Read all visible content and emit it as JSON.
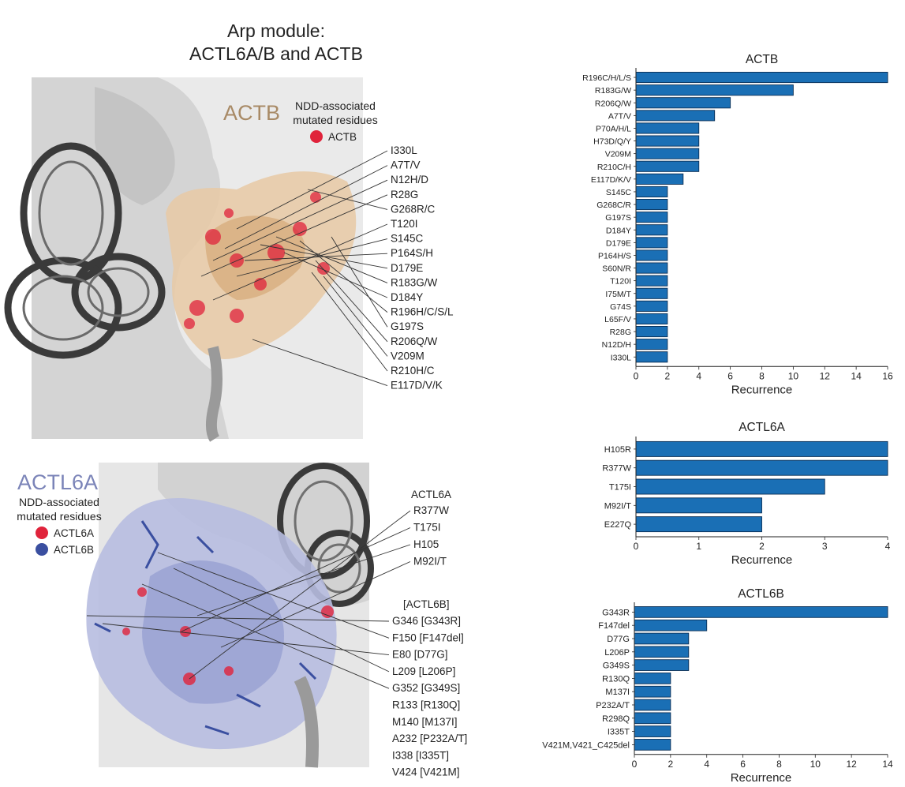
{
  "panel_title_line1": "Arp module:",
  "panel_title_line2": "ACTL6A/B and ACTB",
  "actb_panel": {
    "protein_label": "ACTB",
    "legend_title_line1": "NDD-associated",
    "legend_title_line2": "mutated residues",
    "legend_item": "ACTB",
    "residues": [
      "I330L",
      "A7T/V",
      "N12H/D",
      "R28G",
      "G268R/C",
      "T120I",
      "S145C",
      "P164S/H",
      "D179E",
      "R183G/W",
      "D184Y",
      "R196H/C/S/L",
      "G197S",
      "R206Q/W",
      "V209M",
      "R210H/C",
      "E117D/V/K"
    ]
  },
  "actl6_panel": {
    "protein_label": "ACTL6A",
    "legend_title_line1": "NDD-associated",
    "legend_title_line2": "mutated residues",
    "legend_items": [
      "ACTL6A",
      "ACTL6B"
    ],
    "group_a_header": "ACTL6A",
    "group_a": [
      "R377W",
      "T175I",
      "H105",
      "M92I/T"
    ],
    "group_b_header": "[ACTL6B]",
    "group_b": [
      "G346 [G343R]",
      "F150 [F147del]",
      "E80 [D77G]",
      "L209 [L206P]",
      "G352 [G349S]",
      "R133 [R130Q]",
      "M140 [M137I]",
      "A232 [P232A/T]",
      "I338 [I335T]",
      "V424 [V421M]"
    ]
  },
  "colors": {
    "bar": "#1a6fb5",
    "bar_edge": "#0b2f55",
    "actb_label": "#a88a66",
    "actl6a_label": "#7b84b8",
    "mutation_red": "#e0233b",
    "actl6b_blue": "#3a4fa0",
    "protein_tan": "#e8c9a4",
    "protein_lavender": "#aab0d8"
  },
  "chart_data": [
    {
      "type": "bar",
      "orientation": "horizontal",
      "title": "ACTB",
      "xlabel": "Recurrence",
      "xlim": [
        0,
        16
      ],
      "xticks": [
        0,
        2,
        4,
        6,
        8,
        10,
        12,
        14,
        16
      ],
      "categories": [
        "R196C/H/L/S",
        "R183G/W",
        "R206Q/W",
        "A7T/V",
        "P70A/H/L",
        "H73D/Q/Y",
        "V209M",
        "R210C/H",
        "E117D/K/V",
        "S145C",
        "G268C/R",
        "G197S",
        "D184Y",
        "D179E",
        "P164H/S",
        "S60N/R",
        "T120I",
        "I75M/T",
        "G74S",
        "L65F/V",
        "R28G",
        "N12D/H",
        "I330L"
      ],
      "values": [
        16,
        10,
        6,
        5,
        4,
        4,
        4,
        4,
        3,
        2,
        2,
        2,
        2,
        2,
        2,
        2,
        2,
        2,
        2,
        2,
        2,
        2,
        2
      ]
    },
    {
      "type": "bar",
      "orientation": "horizontal",
      "title": "ACTL6A",
      "xlabel": "Recurrence",
      "xlim": [
        0,
        4
      ],
      "xticks": [
        0,
        1,
        2,
        3,
        4
      ],
      "categories": [
        "H105R",
        "R377W",
        "T175I",
        "M92I/T",
        "E227Q"
      ],
      "values": [
        4,
        4,
        3,
        2,
        2
      ]
    },
    {
      "type": "bar",
      "orientation": "horizontal",
      "title": "ACTL6B",
      "xlabel": "Recurrence",
      "xlim": [
        0,
        14
      ],
      "xticks": [
        0,
        2,
        4,
        6,
        8,
        10,
        12,
        14
      ],
      "categories": [
        "G343R",
        "F147del",
        "D77G",
        "L206P",
        "G349S",
        "R130Q",
        "M137I",
        "P232A/T",
        "R298Q",
        "I335T",
        "V421M,V421_C425del"
      ],
      "values": [
        14,
        4,
        3,
        3,
        3,
        2,
        2,
        2,
        2,
        2,
        2
      ]
    }
  ]
}
